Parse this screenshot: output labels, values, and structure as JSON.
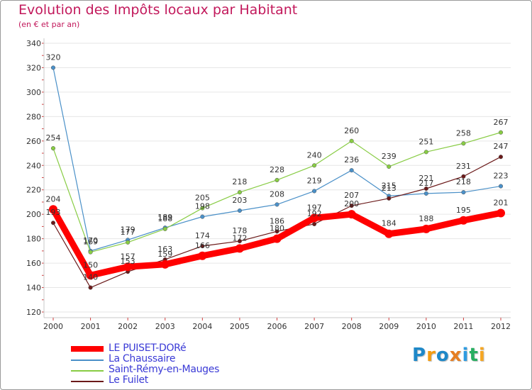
{
  "title": "Evolution des Impôts locaux par Habitant",
  "subtitle": "(en € et par an)",
  "logo": {
    "text": "Proxiti",
    "letters": [
      "P",
      "r",
      "o",
      "x",
      "i",
      "t",
      "i"
    ],
    "colors": [
      "#1e88c8",
      "#f39c12",
      "#1e88c8",
      "#e67e22",
      "#2e9be0",
      "#27ae60",
      "#f5a623"
    ]
  },
  "chart_data": {
    "type": "line",
    "title": "Evolution des Impôts locaux par Habitant",
    "subtitle": "(en € et par an)",
    "xlabel": "",
    "ylabel": "",
    "categories": [
      "2000",
      "2001",
      "2002",
      "2003",
      "2004",
      "2005",
      "2006",
      "2007",
      "2008",
      "2009",
      "2010",
      "2011",
      "2012"
    ],
    "ylim": [
      120,
      340
    ],
    "yticks": [
      120,
      140,
      160,
      180,
      200,
      220,
      240,
      260,
      280,
      300,
      320,
      340
    ],
    "grid": "horizontal",
    "legend_position": "bottom-left",
    "series": [
      {
        "name": "LE PUISET-DORé",
        "color": "#ff0000",
        "values": [
          204,
          150,
          157,
          159,
          166,
          172,
          180,
          197,
          200,
          184,
          188,
          195,
          201
        ]
      },
      {
        "name": "La Chaussaire",
        "color": "#4a90c8",
        "values": [
          320,
          170,
          179,
          189,
          198,
          203,
          208,
          219,
          236,
          215,
          217,
          218,
          223
        ]
      },
      {
        "name": "Saint-Rémy-en-Mauges",
        "color": "#88cc44",
        "values": [
          254,
          169,
          177,
          188,
          205,
          218,
          228,
          240,
          260,
          239,
          251,
          258,
          267
        ]
      },
      {
        "name": "Le Fuilet",
        "color": "#6b1a1a",
        "values": [
          193,
          140,
          153,
          163,
          174,
          178,
          186,
          192,
          207,
          213,
          221,
          231,
          247
        ]
      }
    ]
  }
}
